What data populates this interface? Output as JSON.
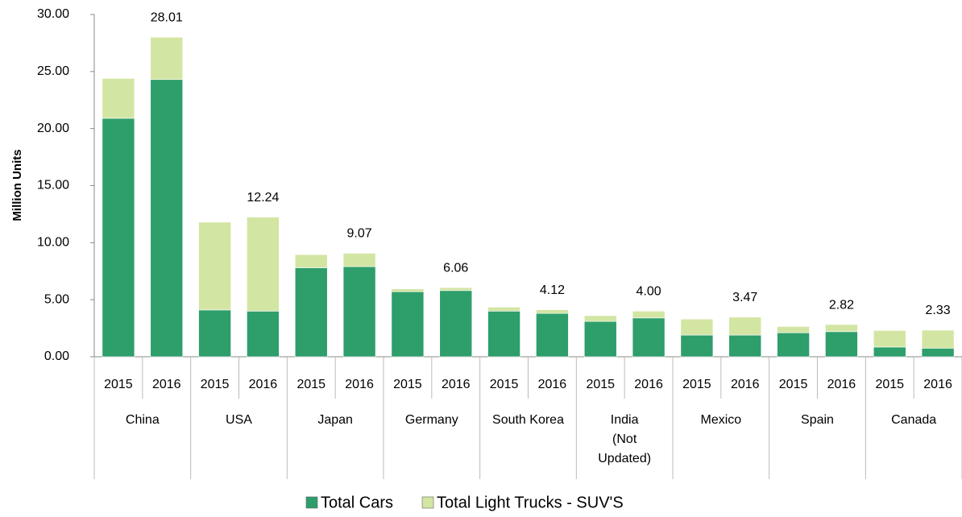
{
  "chart_data": {
    "type": "stacked_bar",
    "y_axis_label": "Million Units",
    "categories": [
      "2015",
      "2016",
      "2015",
      "2016",
      "2015",
      "2016",
      "2015",
      "2016",
      "2015",
      "2016",
      "2015",
      "2016",
      "2015",
      "2016",
      "2015",
      "2016",
      "2015",
      "2016"
    ],
    "groups": [
      "China",
      "USA",
      "Japan",
      "Germany",
      "South Korea",
      "India\n(Not\nUpdated)",
      "Mexico",
      "Spain",
      "Canada"
    ],
    "series": [
      {
        "name": "Total Cars",
        "color": "#2e9e6b",
        "values": [
          20.9,
          24.3,
          4.1,
          4.0,
          7.8,
          7.9,
          5.7,
          5.8,
          4.0,
          3.8,
          3.1,
          3.4,
          1.9,
          1.9,
          2.1,
          2.2,
          0.85,
          0.75
        ]
      },
      {
        "name": "Total Light Trucks - SUV'S",
        "color": "#d3e5a3",
        "values": [
          3.5,
          3.71,
          7.7,
          8.24,
          1.15,
          1.17,
          0.25,
          0.26,
          0.35,
          0.32,
          0.5,
          0.6,
          1.4,
          1.57,
          0.55,
          0.62,
          1.45,
          1.58
        ]
      }
    ],
    "totals": [
      null,
      28.01,
      null,
      12.24,
      null,
      9.07,
      null,
      6.06,
      null,
      4.12,
      null,
      4.0,
      null,
      3.47,
      null,
      2.82,
      null,
      2.33
    ],
    "total_labels": [
      null,
      "28.01",
      null,
      "12.24",
      null,
      "9.07",
      null,
      "6.06",
      null,
      "4.12",
      null,
      "4.00",
      null,
      "3.47",
      null,
      "2.82",
      null,
      "2.33"
    ],
    "ylim": [
      0,
      30
    ],
    "yticks": [
      {
        "value": 0,
        "label": "0.00"
      },
      {
        "value": 5,
        "label": "5.00"
      },
      {
        "value": 10,
        "label": "10.00"
      },
      {
        "value": 15,
        "label": "15.00"
      },
      {
        "value": 20,
        "label": "20.00"
      },
      {
        "value": 25,
        "label": "25.00"
      },
      {
        "value": 30,
        "label": "30.00"
      }
    ],
    "legend": "bottom"
  }
}
